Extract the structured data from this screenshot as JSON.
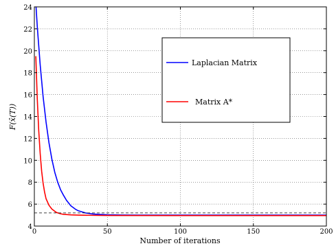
{
  "chart_data": {
    "type": "line",
    "title": "",
    "xlabel": "Number of iterations",
    "ylabel": "F(x̂(T))",
    "xlim": [
      0,
      200
    ],
    "ylim": [
      4,
      24
    ],
    "x_ticks": [
      0,
      50,
      100,
      150,
      200
    ],
    "y_ticks": [
      4,
      6,
      8,
      10,
      12,
      14,
      16,
      18,
      20,
      22,
      24
    ],
    "grid": true,
    "legend_position": "upper-right",
    "series": [
      {
        "name": "Laplacian Matrix",
        "color": "#0000ff",
        "x": [
          0,
          2,
          4,
          6,
          8,
          10,
          12,
          14,
          16,
          18,
          20,
          22,
          25,
          28,
          30,
          35,
          40,
          45,
          50,
          60,
          70,
          80,
          100,
          120,
          150,
          200
        ],
        "y": [
          26.5,
          22.2,
          18.7,
          15.8,
          13.5,
          11.6,
          10.1,
          8.9,
          8.0,
          7.3,
          6.8,
          6.35,
          5.85,
          5.55,
          5.4,
          5.2,
          5.1,
          5.06,
          5.03,
          5.01,
          5.0,
          5.0,
          5.0,
          5.0,
          5.0,
          5.0
        ]
      },
      {
        "name": "Matrix A*",
        "color": "#ff0000",
        "x": [
          1,
          2,
          3,
          4,
          5,
          6,
          7,
          8,
          10,
          12,
          15,
          18,
          20,
          25,
          30,
          40,
          50,
          100,
          150,
          200
        ],
        "y": [
          19.5,
          15.6,
          12.7,
          10.6,
          9.0,
          7.9,
          7.1,
          6.5,
          5.9,
          5.55,
          5.25,
          5.12,
          5.07,
          5.02,
          5.0,
          4.98,
          4.97,
          4.96,
          4.96,
          4.96
        ]
      }
    ],
    "reference_lines": [
      {
        "type": "horizontal",
        "y": 5.2,
        "style": "dashed",
        "color": "#000000"
      }
    ]
  }
}
